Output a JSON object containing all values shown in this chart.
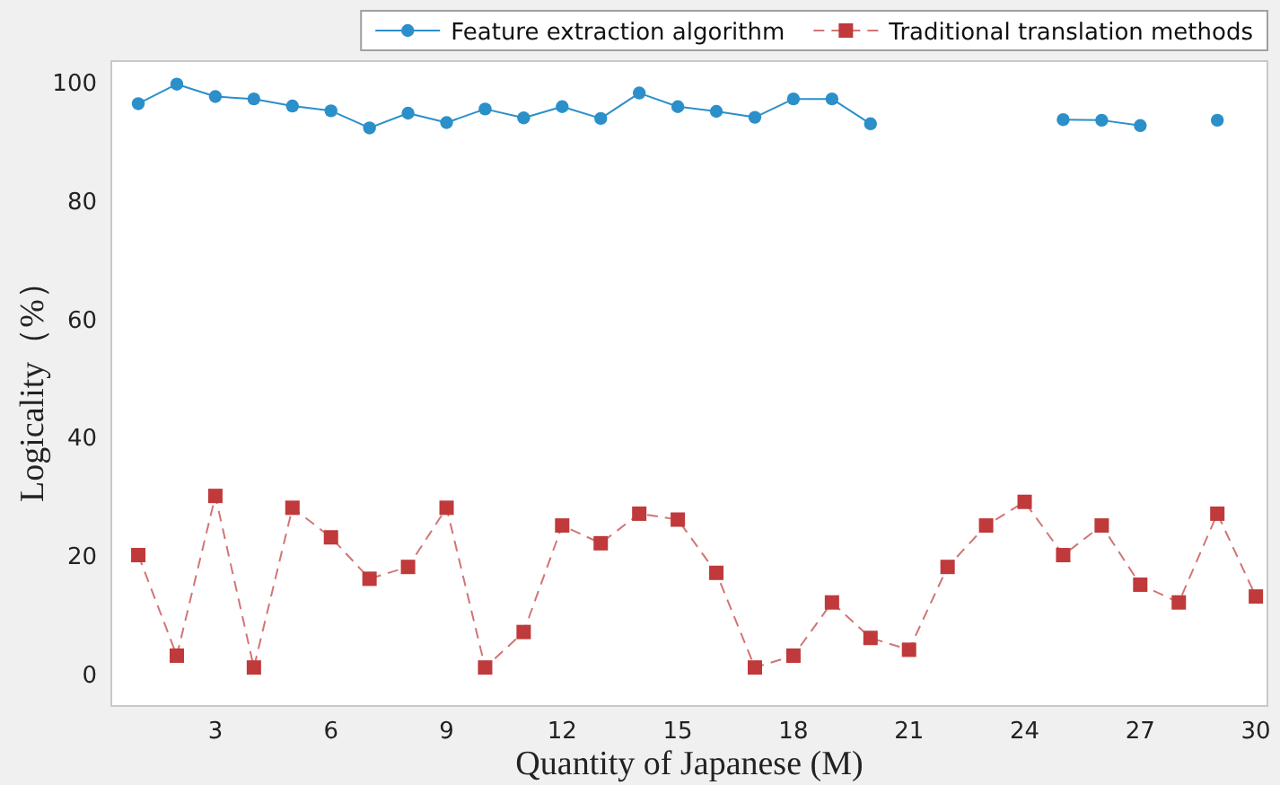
{
  "chart_data": {
    "type": "line",
    "xlabel": "Quantity of Japanese (M)",
    "ylabel": "Logicality（%）",
    "x": [
      1,
      2,
      3,
      4,
      5,
      6,
      7,
      8,
      9,
      10,
      11,
      12,
      13,
      14,
      15,
      16,
      17,
      18,
      19,
      20,
      21,
      22,
      23,
      24,
      25,
      26,
      27,
      28,
      29,
      30
    ],
    "series": [
      {
        "name": "Feature extraction algorithm",
        "color": "#2b8fc9",
        "marker": "circle",
        "line_style": "solid",
        "values": [
          96.3,
          99.6,
          97.5,
          97.1,
          95.9,
          95.1,
          92.2,
          94.7,
          93.1,
          95.4,
          93.9,
          95.8,
          93.8,
          98.1,
          95.8,
          95.0,
          94.0,
          97.1,
          97.1,
          92.9,
          null,
          null,
          null,
          null,
          93.6,
          93.5,
          92.6,
          null,
          93.5,
          null
        ]
      },
      {
        "name": "Traditional translation methods",
        "color": "#c0393b",
        "marker": "square",
        "line_style": "dashed",
        "values": [
          20,
          3,
          30,
          1,
          28,
          23,
          16,
          18,
          28,
          1,
          7,
          25,
          22,
          27,
          26,
          17,
          1,
          3,
          12,
          6,
          4,
          18,
          25,
          29,
          20,
          25,
          15,
          12,
          27,
          13
        ]
      }
    ],
    "xlim": [
      0.3,
      30.3
    ],
    "xticks": [
      3,
      6,
      9,
      12,
      15,
      18,
      21,
      24,
      27,
      30
    ],
    "ylim": [
      -5.5,
      103.5
    ],
    "yticks": [
      0,
      20,
      40,
      60,
      80,
      100
    ],
    "grid": false,
    "legend": "top"
  }
}
